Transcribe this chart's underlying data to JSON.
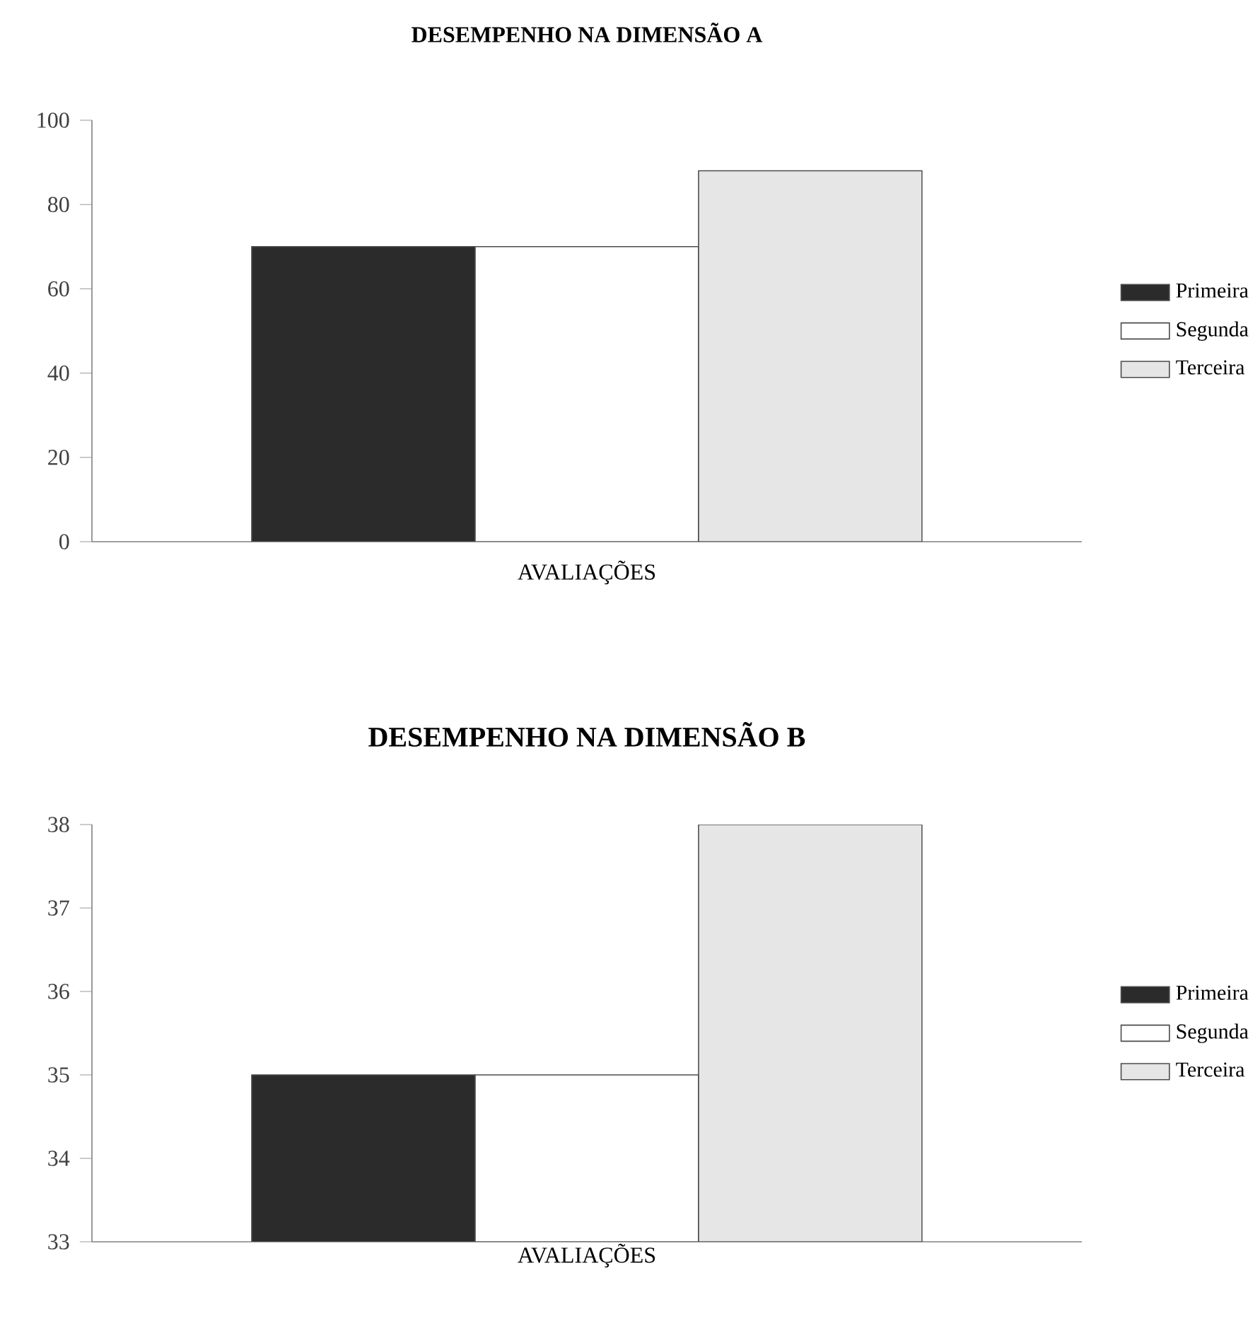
{
  "chart_data": [
    {
      "type": "bar",
      "title": "DESEMPENHO NA DIMENSÃO A",
      "xlabel": "AVALIAÇÕES",
      "categories": [
        null
      ],
      "series": [
        {
          "name": "Primeira",
          "color": "#2b2b2b",
          "values": [
            70
          ]
        },
        {
          "name": "Segunda",
          "color": "#ffffff",
          "values": [
            70
          ]
        },
        {
          "name": "Terceira",
          "color": "#e6e6e6",
          "values": [
            88
          ]
        }
      ],
      "ylim": [
        0,
        100
      ],
      "yticks": [
        0,
        20,
        40,
        60,
        80,
        100
      ],
      "legend": "right"
    },
    {
      "type": "bar",
      "title": "DESEMPENHO NA DIMENSÃO B",
      "xlabel": "AVALIAÇÕES",
      "categories": [
        null
      ],
      "series": [
        {
          "name": "Primeira",
          "color": "#2b2b2b",
          "values": [
            35
          ]
        },
        {
          "name": "Segunda",
          "color": "#ffffff",
          "values": [
            35
          ]
        },
        {
          "name": "Terceira",
          "color": "#e6e6e6",
          "values": [
            38
          ]
        }
      ],
      "ylim": [
        33,
        38
      ],
      "yticks": [
        33,
        34,
        35,
        36,
        37,
        38
      ],
      "legend": "right"
    }
  ]
}
